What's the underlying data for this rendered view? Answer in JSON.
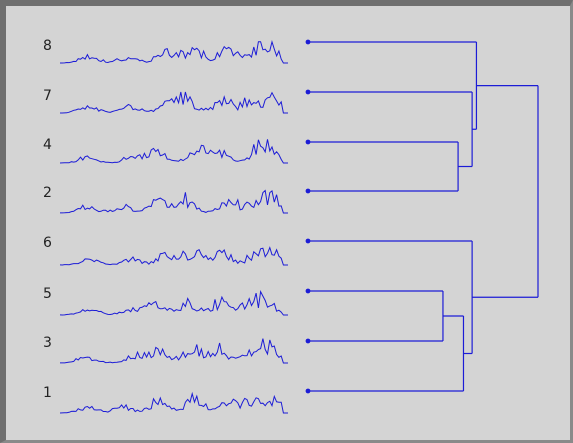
{
  "colors": {
    "trace": "#1c1cd6",
    "label": "#222222",
    "background": "#d4d4d4"
  },
  "rows": [
    {
      "label": "8",
      "seed": 8
    },
    {
      "label": "7",
      "seed": 7
    },
    {
      "label": "4",
      "seed": 4
    },
    {
      "label": "2",
      "seed": 2
    },
    {
      "label": "6",
      "seed": 6
    },
    {
      "label": "5",
      "seed": 5
    },
    {
      "label": "3",
      "seed": 3
    },
    {
      "label": "1",
      "seed": 1
    }
  ],
  "dendrogram": {
    "leaves": [
      "8",
      "7",
      "4",
      "2",
      "6",
      "5",
      "3",
      "1"
    ],
    "merges": [
      {
        "id": "m1",
        "left": "5",
        "right": "3",
        "level": 0.12
      },
      {
        "id": "m2",
        "left": "4",
        "right": "2",
        "level": 0.26
      },
      {
        "id": "m3",
        "left": "m1",
        "right": "1",
        "level": 0.31
      },
      {
        "id": "m4",
        "left": "6",
        "right": "m3",
        "level": 0.39
      },
      {
        "id": "m5",
        "left": "7",
        "right": "m2",
        "level": 0.39
      },
      {
        "id": "m6",
        "left": "8",
        "right": "m5",
        "level": 0.43
      },
      {
        "id": "m7",
        "left": "m6",
        "right": "m4",
        "level": 1.0
      }
    ]
  }
}
